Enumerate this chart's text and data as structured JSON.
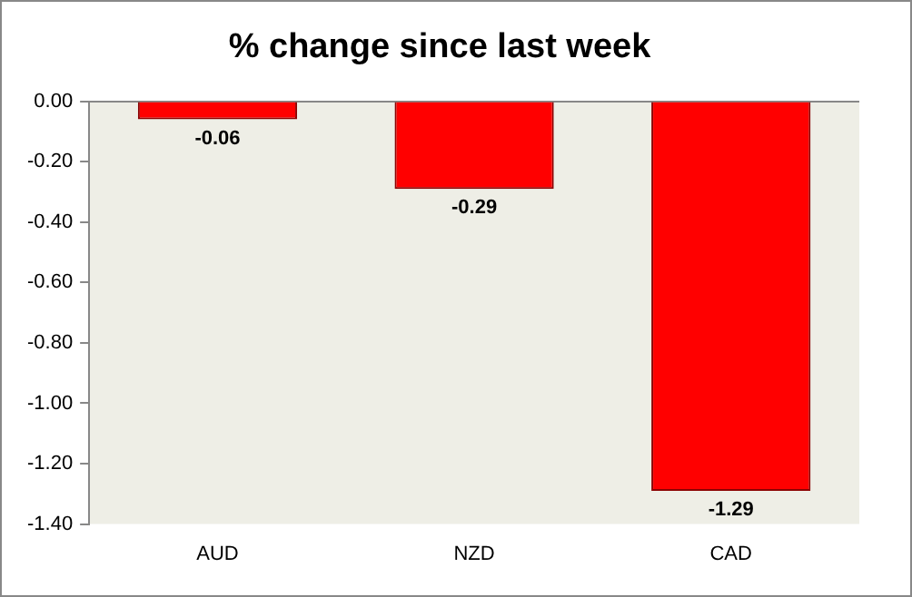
{
  "chart_data": {
    "type": "bar",
    "title": "% change since last week",
    "categories": [
      "AUD",
      "NZD",
      "CAD"
    ],
    "values": [
      -0.06,
      -0.29,
      -1.29
    ],
    "color": "#ff0000",
    "value_labels": [
      "-0.06",
      "-0.29",
      "-1.29"
    ],
    "ylim": [
      -1.4,
      0
    ],
    "yticks": [
      {
        "value": 0,
        "label": "0.00"
      },
      {
        "value": -0.2,
        "label": "-0.20"
      },
      {
        "value": -0.4,
        "label": "-0.40"
      },
      {
        "value": -0.6,
        "label": "-0.60"
      },
      {
        "value": -0.8,
        "label": "-0.80"
      },
      {
        "value": -1.0,
        "label": "-1.00"
      },
      {
        "value": -1.2,
        "label": "-1.20"
      },
      {
        "value": -1.4,
        "label": "-1.40"
      }
    ],
    "grid": false,
    "legend": false
  }
}
